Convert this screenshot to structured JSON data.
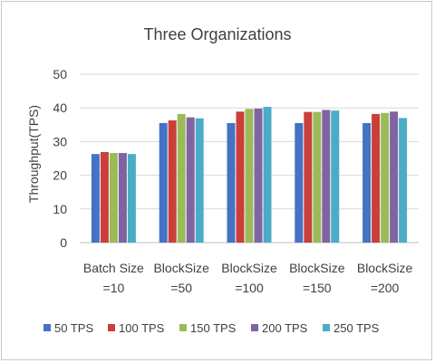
{
  "chart_data": {
    "type": "bar",
    "title": "Three Organizations",
    "ylabel": "Throughput(TPS)",
    "xlabel": "",
    "ylim": [
      0,
      50
    ],
    "yticks": [
      0,
      10,
      20,
      30,
      40,
      50
    ],
    "grid": true,
    "legend_position": "bottom",
    "categories": [
      [
        "Batch Size",
        "=10"
      ],
      [
        "BlockSize",
        "=50"
      ],
      [
        "BlockSize",
        "=100"
      ],
      [
        "BlockSize",
        "=150"
      ],
      [
        "BlockSize",
        "=200"
      ]
    ],
    "series": [
      {
        "name": "50 TPS",
        "color": "#4472c4",
        "values": [
          26.3,
          35.5,
          35.5,
          35.5,
          35.5
        ]
      },
      {
        "name": "100 TPS",
        "color": "#c9403b",
        "values": [
          26.9,
          36.3,
          38.9,
          38.8,
          38.2
        ]
      },
      {
        "name": "150 TPS",
        "color": "#9bbb59",
        "values": [
          26.6,
          38.2,
          39.7,
          38.8,
          38.5
        ]
      },
      {
        "name": "200 TPS",
        "color": "#8064a2",
        "values": [
          26.6,
          37.2,
          39.8,
          39.4,
          38.9
        ]
      },
      {
        "name": "250 TPS",
        "color": "#4bacc6",
        "values": [
          26.3,
          36.9,
          40.3,
          39.2,
          37.0
        ]
      }
    ],
    "colors": {
      "grid": "#d9d9d9",
      "text": "#404040",
      "axis": "#bfbfbf"
    }
  }
}
